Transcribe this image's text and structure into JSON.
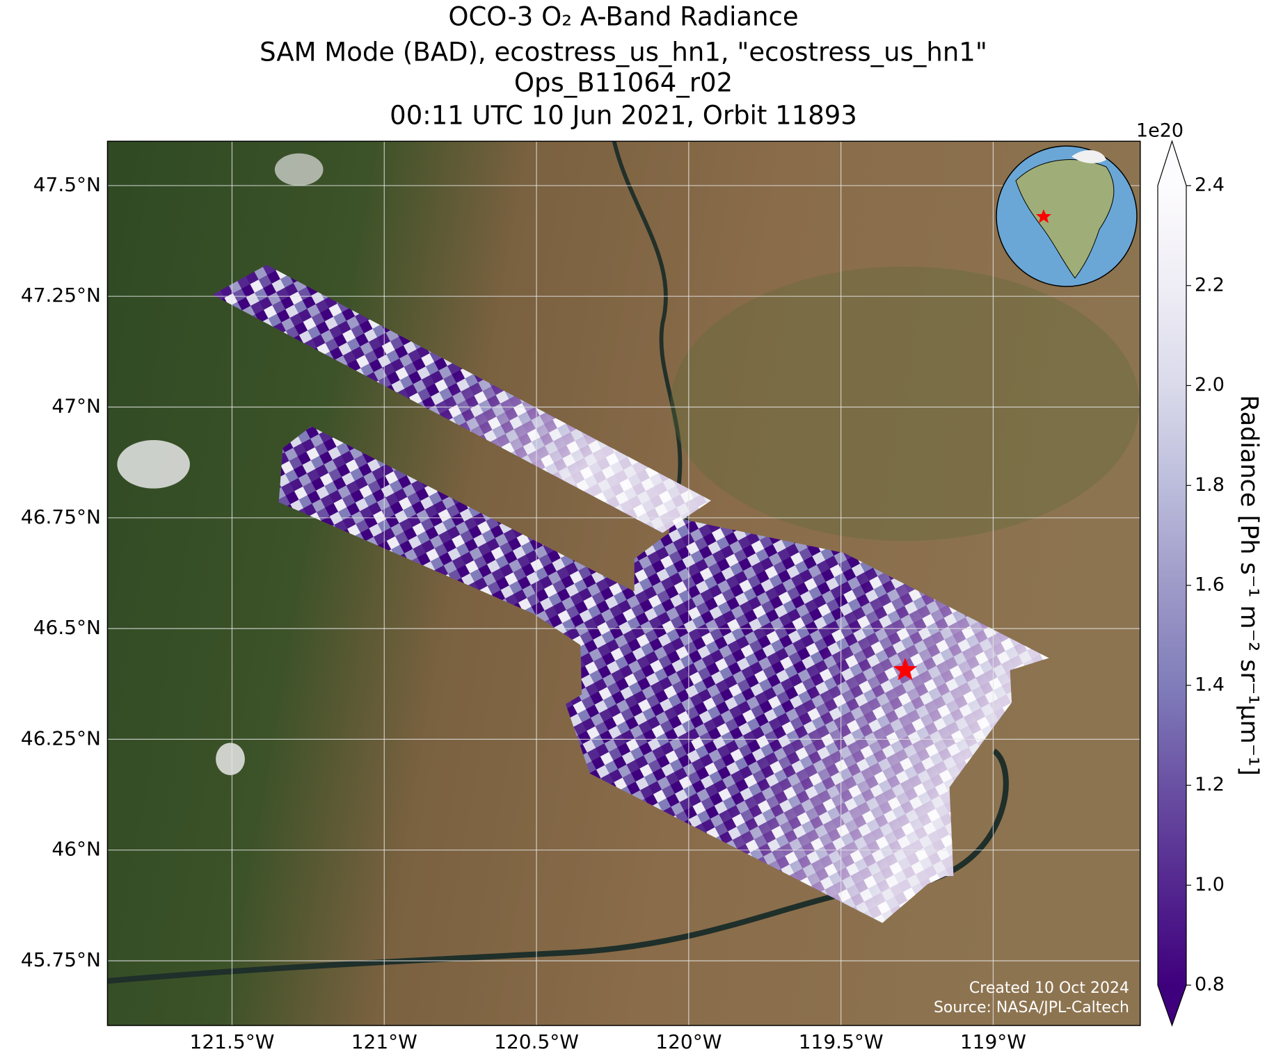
{
  "chart_data": {
    "type": "map",
    "title": [
      "OCO-3 O₂ A-Band Radiance",
      "SAM Mode (BAD), ecostress_us_hn1, \"ecostress_us_hn1\"",
      "Ops_B11064_r02",
      "00:11 UTC 10 Jun 2021, Orbit 11893"
    ],
    "xlim": [
      -121.909,
      -118.517
    ],
    "ylim": [
      45.604,
      47.6
    ],
    "xticks": [
      {
        "value": -121.5,
        "label": "121.5°W"
      },
      {
        "value": -121,
        "label": "121°W"
      },
      {
        "value": -120.5,
        "label": "120.5°W"
      },
      {
        "value": -120,
        "label": "120°W"
      },
      {
        "value": -119.5,
        "label": "119.5°W"
      },
      {
        "value": -119,
        "label": "119°W"
      }
    ],
    "yticks": [
      {
        "value": 45.75,
        "label": "45.75°N"
      },
      {
        "value": 46,
        "label": "46°N"
      },
      {
        "value": 46.25,
        "label": "46.25°N"
      },
      {
        "value": 46.5,
        "label": "46.5°N"
      },
      {
        "value": 46.75,
        "label": "46.75°N"
      },
      {
        "value": 47,
        "label": "47°N"
      },
      {
        "value": 47.25,
        "label": "47.25°N"
      },
      {
        "value": 47.5,
        "label": "47.5°N"
      }
    ],
    "grid": true,
    "target": {
      "lon": -119.289,
      "lat": 46.406,
      "color": "#ff0000"
    },
    "colorbar": {
      "label": "Radiance [Ph s⁻¹ m⁻² sr⁻¹µm⁻¹]",
      "exponent": "1e20",
      "clim": [
        0.8,
        2.4
      ],
      "ticks": [
        0.8,
        {
          "value": 1,
          "label": "1.0"
        },
        1.2,
        1.4,
        1.6,
        1.8,
        {
          "value": 2,
          "label": "2.0"
        },
        2.2,
        2.4
      ],
      "colormap": [
        "#3f007d",
        "#54278f",
        "#6a51a3",
        "#807dba",
        "#9e9ac8",
        "#bcbddc",
        "#dadaeb",
        "#efedf5",
        "#fcfbfd"
      ]
    },
    "credits": [
      "Created 10 Oct 2024",
      "Source: NASA/JPL-Caltech"
    ]
  }
}
